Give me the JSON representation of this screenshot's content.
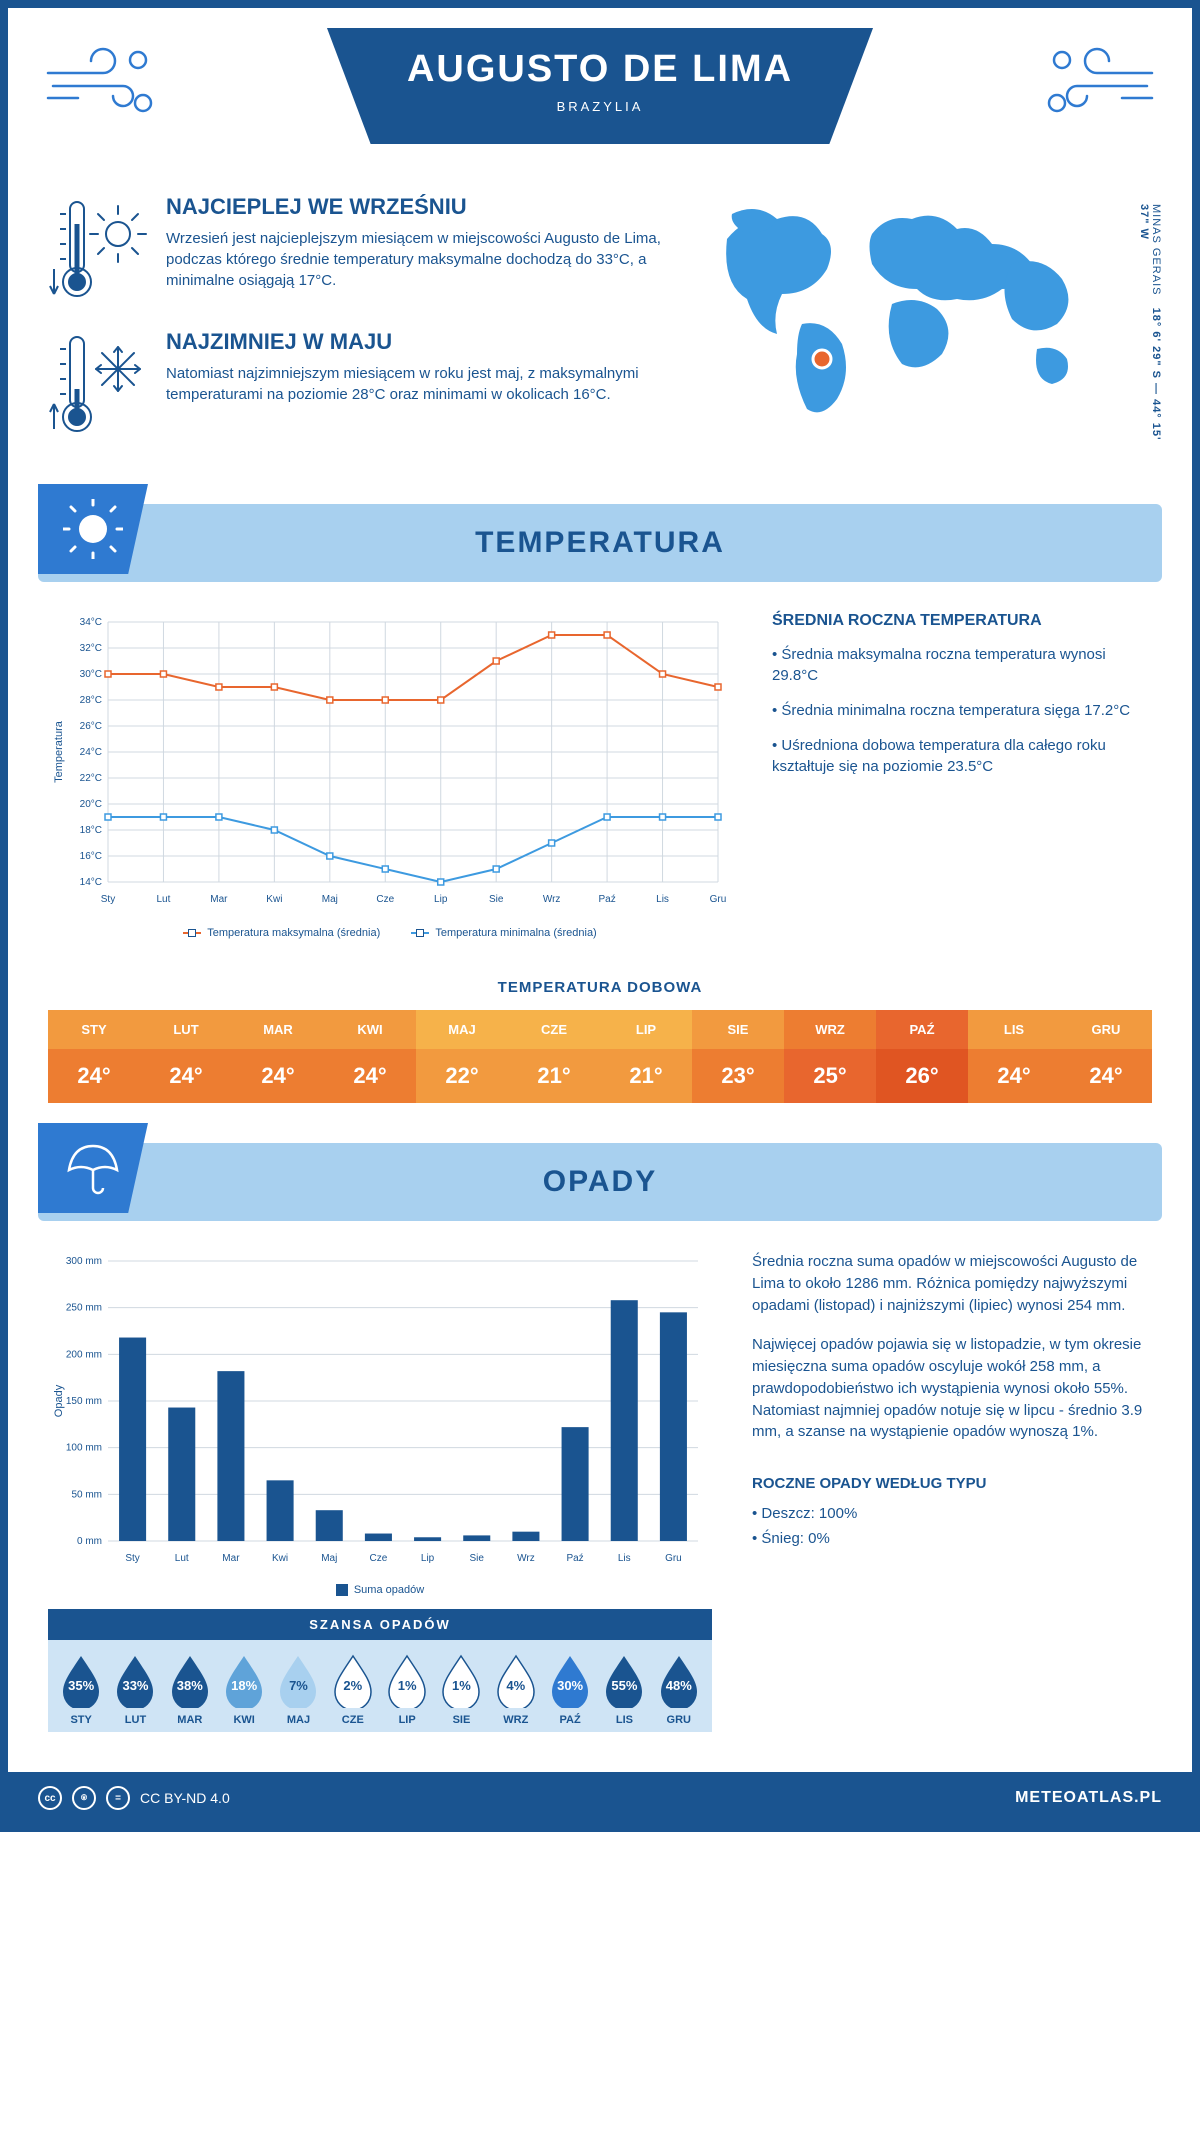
{
  "header": {
    "title": "AUGUSTO DE LIMA",
    "subtitle": "BRAZYLIA"
  },
  "coords": {
    "line1": "MINAS GERAIS",
    "line2": "18° 6' 29\" S — 44° 15' 37\" W"
  },
  "intro": {
    "hot": {
      "title": "NAJCIEPLEJ WE WRZEŚNIU",
      "body": "Wrzesień jest najcieplejszym miesiącem w miejscowości Augusto de Lima, podczas którego średnie temperatury maksymalne dochodzą do 33°C, a minimalne osiągają 17°C."
    },
    "cold": {
      "title": "NAJZIMNIEJ W MAJU",
      "body": "Natomiast najzimniejszym miesiącem w roku jest maj, z maksymalnymi temperaturami na poziomie 28°C oraz minimami w okolicach 16°C."
    }
  },
  "sections": {
    "temperature": "TEMPERATURA",
    "precip": "OPADY"
  },
  "temperature": {
    "months": [
      "Sty",
      "Lut",
      "Mar",
      "Kwi",
      "Maj",
      "Cze",
      "Lip",
      "Sie",
      "Wrz",
      "Paź",
      "Lis",
      "Gru"
    ],
    "max_series": [
      30,
      30,
      29,
      29,
      28,
      28,
      28,
      31,
      33,
      33,
      30,
      29
    ],
    "min_series": [
      19,
      19,
      19,
      18,
      16,
      15,
      14,
      15,
      17,
      19,
      19,
      19
    ],
    "ylim": [
      14,
      34
    ],
    "ytick_step": 2,
    "ylabel": "Temperatura",
    "colors": {
      "max": "#e8662e",
      "min": "#3d9ae0",
      "grid": "#d0d8e0",
      "axis": "#1a5490"
    },
    "legend": {
      "max": "Temperatura maksymalna (średnia)",
      "min": "Temperatura minimalna (średnia)"
    },
    "annual": {
      "title": "ŚREDNIA ROCZNA TEMPERATURA",
      "bullets": [
        "• Średnia maksymalna roczna temperatura wynosi 29.8°C",
        "• Średnia minimalna roczna temperatura sięga 17.2°C",
        "• Uśredniona dobowa temperatura dla całego roku kształtuje się na poziomie 23.5°C"
      ]
    }
  },
  "daily": {
    "title": "TEMPERATURA DOBOWA",
    "months": [
      "STY",
      "LUT",
      "MAR",
      "KWI",
      "MAJ",
      "CZE",
      "LIP",
      "SIE",
      "WRZ",
      "PAŹ",
      "LIS",
      "GRU"
    ],
    "values": [
      "24°",
      "24°",
      "24°",
      "24°",
      "22°",
      "21°",
      "21°",
      "23°",
      "25°",
      "26°",
      "24°",
      "24°"
    ],
    "head_colors": [
      "#f29a3f",
      "#f29a3f",
      "#f29a3f",
      "#f29a3f",
      "#f6b24a",
      "#f6b24a",
      "#f6b24a",
      "#f29a3f",
      "#ed7d31",
      "#e8662e",
      "#f29a3f",
      "#f29a3f"
    ],
    "val_colors": [
      "#ed7d31",
      "#ed7d31",
      "#ed7d31",
      "#ed7d31",
      "#f29a3f",
      "#f29a3f",
      "#f29a3f",
      "#ed7d31",
      "#e8662e",
      "#e05522",
      "#ed7d31",
      "#ed7d31"
    ]
  },
  "precip": {
    "months": [
      "Sty",
      "Lut",
      "Mar",
      "Kwi",
      "Maj",
      "Cze",
      "Lip",
      "Sie",
      "Wrz",
      "Paź",
      "Lis",
      "Gru"
    ],
    "values": [
      218,
      143,
      182,
      65,
      33,
      8,
      4,
      6,
      10,
      122,
      258,
      245
    ],
    "ylim": [
      0,
      300
    ],
    "ytick_step": 50,
    "ylabel": "Opady",
    "bar_color": "#1a5490",
    "grid": "#d0d8e0",
    "legend": "Suma opadów",
    "p1": "Średnia roczna suma opadów w miejscowości Augusto de Lima to około 1286 mm. Różnica pomiędzy najwyższymi opadami (listopad) i najniższymi (lipiec) wynosi 254 mm.",
    "p2": "Najwięcej opadów pojawia się w listopadzie, w tym okresie miesięczna suma opadów oscyluje wokół 258 mm, a prawdopodobieństwo ich wystąpienia wynosi około 55%. Natomiast najmniej opadów notuje się w lipcu - średnio 3.9 mm, a szanse na wystąpienie opadów wynoszą 1%.",
    "types_title": "ROCZNE OPADY WEDŁUG TYPU",
    "types": [
      "• Deszcz: 100%",
      "• Śnieg: 0%"
    ]
  },
  "chance": {
    "title": "SZANSA OPADÓW",
    "months": [
      "STY",
      "LUT",
      "MAR",
      "KWI",
      "MAJ",
      "CZE",
      "LIP",
      "SIE",
      "WRZ",
      "PAŹ",
      "LIS",
      "GRU"
    ],
    "values": [
      "35%",
      "33%",
      "38%",
      "18%",
      "7%",
      "2%",
      "1%",
      "1%",
      "4%",
      "30%",
      "55%",
      "48%"
    ],
    "fills": [
      "#1a5490",
      "#1a5490",
      "#1a5490",
      "#5fa3d9",
      "#a8d0ef",
      "#ffffff",
      "#ffffff",
      "#ffffff",
      "#ffffff",
      "#2f7ad1",
      "#1a5490",
      "#1a5490"
    ],
    "text_colors": [
      "#ffffff",
      "#ffffff",
      "#ffffff",
      "#ffffff",
      "#1a5490",
      "#1a5490",
      "#1a5490",
      "#1a5490",
      "#1a5490",
      "#ffffff",
      "#ffffff",
      "#ffffff"
    ]
  },
  "footer": {
    "license": "CC BY-ND 4.0",
    "site": "METEOATLAS.PL"
  }
}
